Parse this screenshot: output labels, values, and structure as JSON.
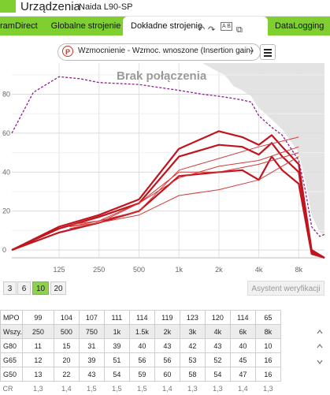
{
  "app": {
    "title": "Urządzenia",
    "device": "Naida L90-SP"
  },
  "tabs": [
    {
      "label": "ramDirect"
    },
    {
      "label": "Globalne strojenie"
    },
    {
      "label": "Dokładne strojenie",
      "active": true
    },
    {
      "label": "DataLogging"
    }
  ],
  "tab_icons": [
    "undo-icon",
    "redo-icon",
    "ab-compare-icon",
    "copy-icon"
  ],
  "tab_icon_ab": "A B",
  "selector": {
    "icon_letter": "P",
    "label": "Wzmocnienie - Wzmoc. wnoszone (Insertion gain)",
    "chevron": "⌄"
  },
  "chart_data": {
    "type": "line",
    "watermark": "Brak połączenia",
    "x_ticks": [
      "125",
      "250",
      "500",
      "1k",
      "2k",
      "4k",
      "8k"
    ],
    "y_ticks": [
      "0",
      "20",
      "40",
      "60",
      "80"
    ],
    "ylim": [
      -4,
      96
    ],
    "series": [
      {
        "curve": "G50 thick",
        "color": "#c0141e",
        "x": [
          55,
          125,
          250,
          500,
          1000,
          2000,
          3000,
          4000,
          5000,
          6000,
          8000,
          10000,
          12500
        ],
        "y": [
          0,
          9,
          14,
          20,
          38,
          40,
          41,
          36,
          48,
          41,
          34,
          -2,
          -4
        ]
      },
      {
        "curve": "G65 thick",
        "color": "#c0141e",
        "x": [
          55,
          125,
          250,
          500,
          1000,
          2000,
          3000,
          4000,
          5000,
          6000,
          8000,
          10000,
          12500
        ],
        "y": [
          0,
          11,
          17,
          24,
          48,
          54,
          53,
          49,
          55,
          48,
          40,
          -1,
          -4
        ]
      },
      {
        "curve": "G80 thick",
        "color": "#c0141e",
        "x": [
          55,
          125,
          250,
          500,
          1000,
          2000,
          3000,
          4000,
          5000,
          6000,
          8000,
          10000,
          12500
        ],
        "y": [
          0,
          12,
          18,
          26,
          52,
          61,
          58,
          54,
          59,
          53,
          44,
          0,
          -4
        ]
      },
      {
        "curve": "thin 1",
        "color": "#d23a3a",
        "x": [
          150,
          250,
          500,
          1000,
          2000,
          4000,
          8000
        ],
        "y": [
          12,
          15,
          20,
          41,
          47,
          53,
          58
        ]
      },
      {
        "curve": "thin 2",
        "color": "#d23a3a",
        "x": [
          150,
          250,
          500,
          1000,
          2000,
          4000,
          8000
        ],
        "y": [
          13,
          15,
          24,
          37,
          43,
          46,
          53
        ]
      },
      {
        "curve": "thin 3",
        "color": "#d23a3a",
        "x": [
          150,
          250,
          500,
          1000,
          2000,
          4000,
          8000
        ],
        "y": [
          12,
          14,
          24,
          40,
          40,
          44,
          50
        ]
      },
      {
        "curve": "thin 4",
        "color": "#d23a3a",
        "x": [
          150,
          250,
          500,
          1000,
          2000,
          4000,
          8000
        ],
        "y": [
          11,
          14,
          18,
          28,
          31,
          36,
          48
        ]
      },
      {
        "curve": "dashed limit",
        "color": "#8e1e8e",
        "dashed": true,
        "x": [
          55,
          80,
          125,
          180,
          250,
          500,
          1000,
          1500,
          2000,
          2500,
          3000,
          3500,
          4000,
          5000,
          6000,
          8000,
          9000,
          10000,
          11500,
          12500
        ],
        "y": [
          60,
          81,
          89,
          88,
          86,
          85,
          82,
          80,
          79,
          78,
          77,
          76,
          69,
          63,
          59,
          46,
          30,
          12,
          7,
          8
        ]
      }
    ],
    "grey_region": {
      "x": [
        1500,
        1800,
        2200,
        2600,
        3000,
        3500,
        4000,
        5000,
        6000,
        8000,
        9000,
        10000,
        11500,
        12500
      ],
      "y": [
        96,
        93,
        90,
        84,
        82,
        79,
        73,
        67,
        62,
        50,
        35,
        18,
        9,
        8
      ]
    },
    "grid": true
  },
  "buttons": {
    "levels": [
      {
        "label": "3"
      },
      {
        "label": "6"
      },
      {
        "label": "10",
        "selected": true
      },
      {
        "label": "20"
      }
    ],
    "assistant": "Asystent weryfikacji"
  },
  "table": {
    "mpo": {
      "label": "MPO",
      "values": [
        "99",
        "104",
        "107",
        "111",
        "114",
        "119",
        "123",
        "120",
        "114",
        "65"
      ]
    },
    "freq": {
      "label": "Wszy.",
      "values": [
        "250",
        "500",
        "750",
        "1k",
        "1.5k",
        "2k",
        "3k",
        "4k",
        "6k",
        "8k"
      ]
    },
    "g80": {
      "label": "G80",
      "values": [
        "11",
        "15",
        "31",
        "39",
        "40",
        "43",
        "42",
        "43",
        "40",
        "10"
      ]
    },
    "g65": {
      "label": "G65",
      "values": [
        "12",
        "20",
        "39",
        "51",
        "56",
        "56",
        "53",
        "52",
        "45",
        "16"
      ]
    },
    "g50": {
      "label": "G50",
      "values": [
        "13",
        "22",
        "43",
        "54",
        "59",
        "60",
        "58",
        "54",
        "47",
        "16"
      ]
    },
    "cr": {
      "label": "CR",
      "values": [
        "1,3",
        "1,4",
        "1,5",
        "1,5",
        "1,5",
        "1,4",
        "1,3",
        "1,3",
        "1,4",
        "1,3"
      ]
    }
  }
}
